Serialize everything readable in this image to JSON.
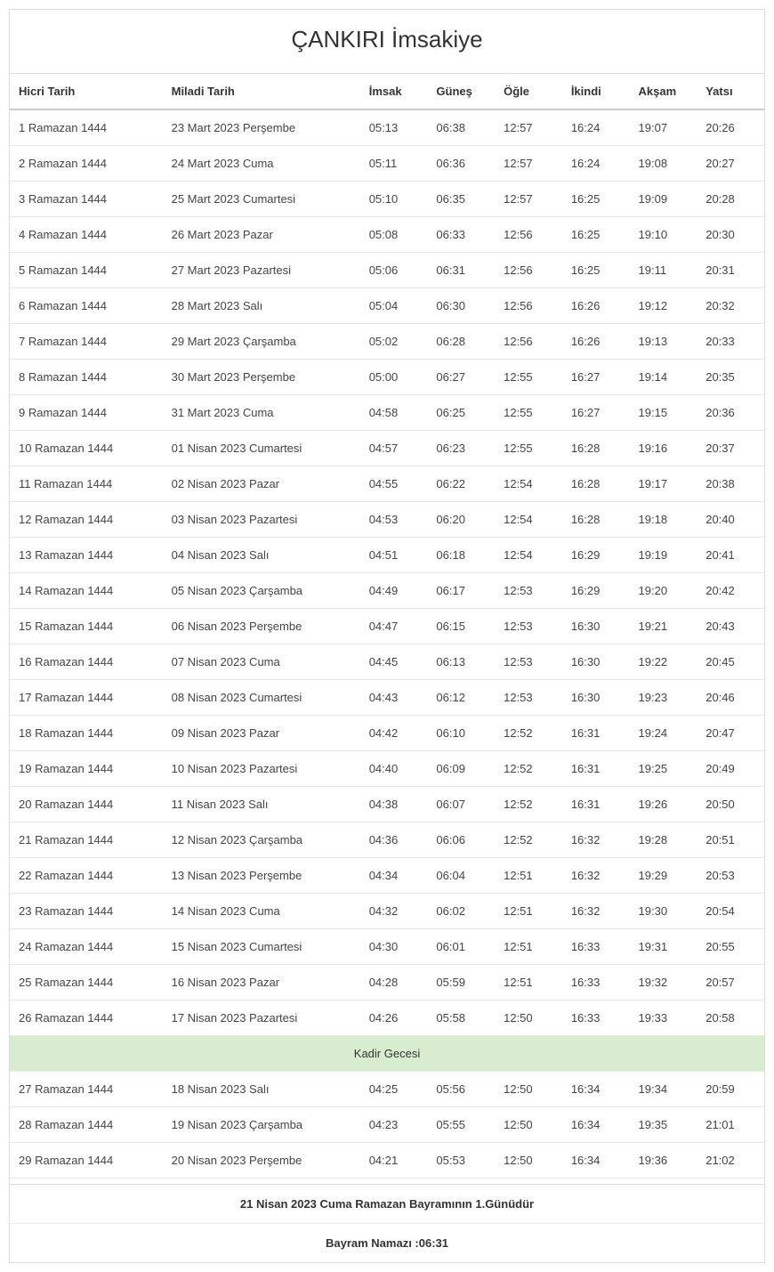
{
  "title": "ÇANKIRI İmsakiye",
  "columns": [
    "Hicri Tarih",
    "Miladi Tarih",
    "İmsak",
    "Güneş",
    "Öğle",
    "İkindi",
    "Akşam",
    "Yatsı"
  ],
  "rows": [
    {
      "type": "data",
      "hicri": "1 Ramazan 1444",
      "miladi": "23 Mart 2023 Perşembe",
      "imsak": "05:13",
      "gunes": "06:38",
      "ogle": "12:57",
      "ikindi": "16:24",
      "aksam": "19:07",
      "yatsi": "20:26"
    },
    {
      "type": "data",
      "hicri": "2 Ramazan 1444",
      "miladi": "24 Mart 2023 Cuma",
      "imsak": "05:11",
      "gunes": "06:36",
      "ogle": "12:57",
      "ikindi": "16:24",
      "aksam": "19:08",
      "yatsi": "20:27"
    },
    {
      "type": "data",
      "hicri": "3 Ramazan 1444",
      "miladi": "25 Mart 2023 Cumartesi",
      "imsak": "05:10",
      "gunes": "06:35",
      "ogle": "12:57",
      "ikindi": "16:25",
      "aksam": "19:09",
      "yatsi": "20:28"
    },
    {
      "type": "data",
      "hicri": "4 Ramazan 1444",
      "miladi": "26 Mart 2023 Pazar",
      "imsak": "05:08",
      "gunes": "06:33",
      "ogle": "12:56",
      "ikindi": "16:25",
      "aksam": "19:10",
      "yatsi": "20:30"
    },
    {
      "type": "data",
      "hicri": "5 Ramazan 1444",
      "miladi": "27 Mart 2023 Pazartesi",
      "imsak": "05:06",
      "gunes": "06:31",
      "ogle": "12:56",
      "ikindi": "16:25",
      "aksam": "19:11",
      "yatsi": "20:31"
    },
    {
      "type": "data",
      "hicri": "6 Ramazan 1444",
      "miladi": "28 Mart 2023 Salı",
      "imsak": "05:04",
      "gunes": "06:30",
      "ogle": "12:56",
      "ikindi": "16:26",
      "aksam": "19:12",
      "yatsi": "20:32"
    },
    {
      "type": "data",
      "hicri": "7 Ramazan 1444",
      "miladi": "29 Mart 2023 Çarşamba",
      "imsak": "05:02",
      "gunes": "06:28",
      "ogle": "12:56",
      "ikindi": "16:26",
      "aksam": "19:13",
      "yatsi": "20:33"
    },
    {
      "type": "data",
      "hicri": "8 Ramazan 1444",
      "miladi": "30 Mart 2023 Perşembe",
      "imsak": "05:00",
      "gunes": "06:27",
      "ogle": "12:55",
      "ikindi": "16:27",
      "aksam": "19:14",
      "yatsi": "20:35"
    },
    {
      "type": "data",
      "hicri": "9 Ramazan 1444",
      "miladi": "31 Mart 2023 Cuma",
      "imsak": "04:58",
      "gunes": "06:25",
      "ogle": "12:55",
      "ikindi": "16:27",
      "aksam": "19:15",
      "yatsi": "20:36"
    },
    {
      "type": "data",
      "hicri": "10 Ramazan 1444",
      "miladi": "01 Nisan 2023 Cumartesi",
      "imsak": "04:57",
      "gunes": "06:23",
      "ogle": "12:55",
      "ikindi": "16:28",
      "aksam": "19:16",
      "yatsi": "20:37"
    },
    {
      "type": "data",
      "hicri": "11 Ramazan 1444",
      "miladi": "02 Nisan 2023 Pazar",
      "imsak": "04:55",
      "gunes": "06:22",
      "ogle": "12:54",
      "ikindi": "16:28",
      "aksam": "19:17",
      "yatsi": "20:38"
    },
    {
      "type": "data",
      "hicri": "12 Ramazan 1444",
      "miladi": "03 Nisan 2023 Pazartesi",
      "imsak": "04:53",
      "gunes": "06:20",
      "ogle": "12:54",
      "ikindi": "16:28",
      "aksam": "19:18",
      "yatsi": "20:40"
    },
    {
      "type": "data",
      "hicri": "13 Ramazan 1444",
      "miladi": "04 Nisan 2023 Salı",
      "imsak": "04:51",
      "gunes": "06:18",
      "ogle": "12:54",
      "ikindi": "16:29",
      "aksam": "19:19",
      "yatsi": "20:41"
    },
    {
      "type": "data",
      "hicri": "14 Ramazan 1444",
      "miladi": "05 Nisan 2023 Çarşamba",
      "imsak": "04:49",
      "gunes": "06:17",
      "ogle": "12:53",
      "ikindi": "16:29",
      "aksam": "19:20",
      "yatsi": "20:42"
    },
    {
      "type": "data",
      "hicri": "15 Ramazan 1444",
      "miladi": "06 Nisan 2023 Perşembe",
      "imsak": "04:47",
      "gunes": "06:15",
      "ogle": "12:53",
      "ikindi": "16:30",
      "aksam": "19:21",
      "yatsi": "20:43"
    },
    {
      "type": "data",
      "hicri": "16 Ramazan 1444",
      "miladi": "07 Nisan 2023 Cuma",
      "imsak": "04:45",
      "gunes": "06:13",
      "ogle": "12:53",
      "ikindi": "16:30",
      "aksam": "19:22",
      "yatsi": "20:45"
    },
    {
      "type": "data",
      "hicri": "17 Ramazan 1444",
      "miladi": "08 Nisan 2023 Cumartesi",
      "imsak": "04:43",
      "gunes": "06:12",
      "ogle": "12:53",
      "ikindi": "16:30",
      "aksam": "19:23",
      "yatsi": "20:46"
    },
    {
      "type": "data",
      "hicri": "18 Ramazan 1444",
      "miladi": "09 Nisan 2023 Pazar",
      "imsak": "04:42",
      "gunes": "06:10",
      "ogle": "12:52",
      "ikindi": "16:31",
      "aksam": "19:24",
      "yatsi": "20:47"
    },
    {
      "type": "data",
      "hicri": "19 Ramazan 1444",
      "miladi": "10 Nisan 2023 Pazartesi",
      "imsak": "04:40",
      "gunes": "06:09",
      "ogle": "12:52",
      "ikindi": "16:31",
      "aksam": "19:25",
      "yatsi": "20:49"
    },
    {
      "type": "data",
      "hicri": "20 Ramazan 1444",
      "miladi": "11 Nisan 2023 Salı",
      "imsak": "04:38",
      "gunes": "06:07",
      "ogle": "12:52",
      "ikindi": "16:31",
      "aksam": "19:26",
      "yatsi": "20:50"
    },
    {
      "type": "data",
      "hicri": "21 Ramazan 1444",
      "miladi": "12 Nisan 2023 Çarşamba",
      "imsak": "04:36",
      "gunes": "06:06",
      "ogle": "12:52",
      "ikindi": "16:32",
      "aksam": "19:28",
      "yatsi": "20:51"
    },
    {
      "type": "data",
      "hicri": "22 Ramazan 1444",
      "miladi": "13 Nisan 2023 Perşembe",
      "imsak": "04:34",
      "gunes": "06:04",
      "ogle": "12:51",
      "ikindi": "16:32",
      "aksam": "19:29",
      "yatsi": "20:53"
    },
    {
      "type": "data",
      "hicri": "23 Ramazan 1444",
      "miladi": "14 Nisan 2023 Cuma",
      "imsak": "04:32",
      "gunes": "06:02",
      "ogle": "12:51",
      "ikindi": "16:32",
      "aksam": "19:30",
      "yatsi": "20:54"
    },
    {
      "type": "data",
      "hicri": "24 Ramazan 1444",
      "miladi": "15 Nisan 2023 Cumartesi",
      "imsak": "04:30",
      "gunes": "06:01",
      "ogle": "12:51",
      "ikindi": "16:33",
      "aksam": "19:31",
      "yatsi": "20:55"
    },
    {
      "type": "data",
      "hicri": "25 Ramazan 1444",
      "miladi": "16 Nisan 2023 Pazar",
      "imsak": "04:28",
      "gunes": "05:59",
      "ogle": "12:51",
      "ikindi": "16:33",
      "aksam": "19:32",
      "yatsi": "20:57"
    },
    {
      "type": "data",
      "hicri": "26 Ramazan 1444",
      "miladi": "17 Nisan 2023 Pazartesi",
      "imsak": "04:26",
      "gunes": "05:58",
      "ogle": "12:50",
      "ikindi": "16:33",
      "aksam": "19:33",
      "yatsi": "20:58"
    },
    {
      "type": "special",
      "label": "Kadir Gecesi"
    },
    {
      "type": "data",
      "hicri": "27 Ramazan 1444",
      "miladi": "18 Nisan 2023 Salı",
      "imsak": "04:25",
      "gunes": "05:56",
      "ogle": "12:50",
      "ikindi": "16:34",
      "aksam": "19:34",
      "yatsi": "20:59"
    },
    {
      "type": "data",
      "hicri": "28 Ramazan 1444",
      "miladi": "19 Nisan 2023 Çarşamba",
      "imsak": "04:23",
      "gunes": "05:55",
      "ogle": "12:50",
      "ikindi": "16:34",
      "aksam": "19:35",
      "yatsi": "21:01"
    },
    {
      "type": "data",
      "hicri": "29 Ramazan 1444",
      "miladi": "20 Nisan 2023 Perşembe",
      "imsak": "04:21",
      "gunes": "05:53",
      "ogle": "12:50",
      "ikindi": "16:34",
      "aksam": "19:36",
      "yatsi": "21:02"
    }
  ],
  "footer": {
    "line1": "21 Nisan 2023 Cuma Ramazan Bayramının 1.Günüdür",
    "line2": "Bayram Namazı :06:31"
  },
  "style": {
    "special_row_bg": "#d8ecd0",
    "border_color": "#dddddd",
    "header_border_color": "#cccccc",
    "row_border_color": "#e8e8e8",
    "text_color": "#333333",
    "cell_text_color": "#444444",
    "background": "#ffffff",
    "title_fontsize": 26,
    "body_fontsize": 13
  }
}
